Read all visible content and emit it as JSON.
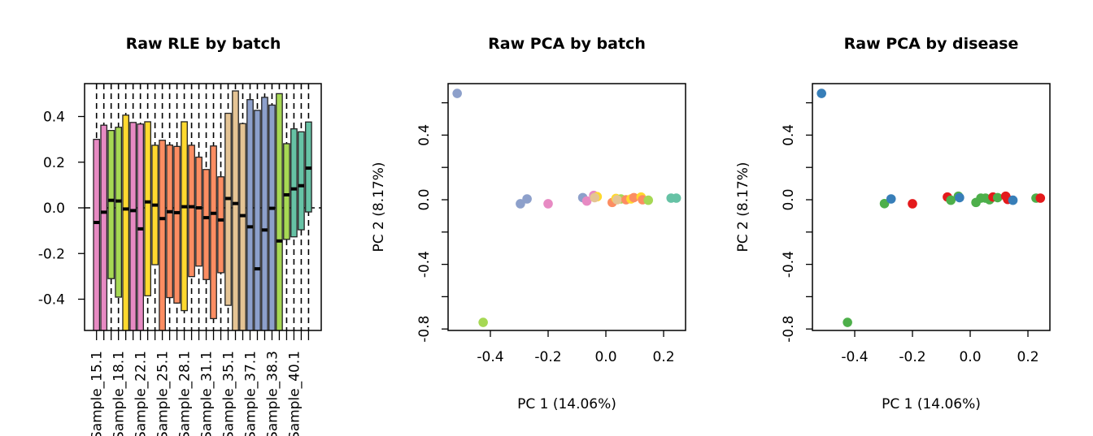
{
  "chart_data": [
    {
      "type": "box",
      "title": "Raw RLE by batch",
      "ylim": [
        -0.54,
        0.54
      ],
      "yticks": [
        "-0.4",
        "-0.2",
        "0.0",
        "0.2",
        "0.4"
      ],
      "ytick_values": [
        -0.4,
        -0.2,
        0.0,
        0.2,
        0.4
      ],
      "reference_line": 0,
      "xtick_labels": [
        {
          "box": 1,
          "label": "Sample_15.1"
        },
        {
          "box": 4,
          "label": "Sample_18.1"
        },
        {
          "box": 7,
          "label": "Sample_22.1"
        },
        {
          "box": 10,
          "label": "Sample_25.1"
        },
        {
          "box": 13,
          "label": "Sample_28.1"
        },
        {
          "box": 16,
          "label": "Sample_31.1"
        },
        {
          "box": 19,
          "label": "Sample_35.1"
        },
        {
          "box": 22,
          "label": "Sample_37.1"
        },
        {
          "box": 25,
          "label": "Sample_38.3"
        },
        {
          "box": 28,
          "label": "Sample_40.1"
        }
      ],
      "boxes": [
        {
          "q3": 0.3,
          "median": -0.064,
          "q1": -0.6,
          "color": "#E78AC3"
        },
        {
          "q3": 0.362,
          "median": -0.019,
          "q1": -0.6,
          "color": "#E78AC3"
        },
        {
          "q3": 0.339,
          "median": 0.033,
          "q1": -0.31,
          "color": "#A6D854"
        },
        {
          "q3": 0.353,
          "median": 0.03,
          "q1": -0.391,
          "color": "#A6D854"
        },
        {
          "q3": 0.406,
          "median": -0.005,
          "q1": -0.6,
          "color": "#FFD92F"
        },
        {
          "q3": 0.374,
          "median": -0.012,
          "q1": -0.6,
          "color": "#E78AC3"
        },
        {
          "q3": 0.367,
          "median": -0.092,
          "q1": -0.6,
          "color": "#E78AC3"
        },
        {
          "q3": 0.377,
          "median": 0.026,
          "q1": -0.385,
          "color": "#FFD92F"
        },
        {
          "q3": 0.274,
          "median": 0.012,
          "q1": -0.249,
          "color": "#FFD92F"
        },
        {
          "q3": 0.296,
          "median": -0.047,
          "q1": -0.6,
          "color": "#FC8D62"
        },
        {
          "q3": 0.275,
          "median": -0.017,
          "q1": -0.393,
          "color": "#FC8D62"
        },
        {
          "q3": 0.269,
          "median": -0.021,
          "q1": -0.417,
          "color": "#FC8D62"
        },
        {
          "q3": 0.377,
          "median": 0.005,
          "q1": -0.45,
          "color": "#FFD92F"
        },
        {
          "q3": 0.274,
          "median": 0.005,
          "q1": -0.301,
          "color": "#FC8D62"
        },
        {
          "q3": 0.222,
          "median": 0.0,
          "q1": -0.255,
          "color": "#FC8D62"
        },
        {
          "q3": 0.168,
          "median": -0.043,
          "q1": -0.314,
          "color": "#FC8D62"
        },
        {
          "q3": 0.271,
          "median": -0.024,
          "q1": -0.485,
          "color": "#FC8D62"
        },
        {
          "q3": 0.136,
          "median": -0.053,
          "q1": -0.284,
          "color": "#FC8D62"
        },
        {
          "q3": 0.414,
          "median": 0.041,
          "q1": -0.427,
          "color": "#E5C494"
        },
        {
          "q3": 0.512,
          "median": 0.019,
          "q1": -0.6,
          "color": "#E5C494"
        },
        {
          "q3": 0.369,
          "median": -0.034,
          "q1": -0.6,
          "color": "#E5C494"
        },
        {
          "q3": 0.474,
          "median": -0.083,
          "q1": -0.6,
          "color": "#8DA0CB"
        },
        {
          "q3": 0.427,
          "median": -0.267,
          "q1": -0.6,
          "color": "#8DA0CB"
        },
        {
          "q3": 0.484,
          "median": -0.097,
          "q1": -0.6,
          "color": "#8DA0CB"
        },
        {
          "q3": 0.45,
          "median": -0.002,
          "q1": -0.6,
          "color": "#8DA0CB"
        },
        {
          "q3": 0.5,
          "median": -0.145,
          "q1": -0.6,
          "color": "#A6D854"
        },
        {
          "q3": 0.281,
          "median": 0.057,
          "q1": -0.138,
          "color": "#A6D854"
        },
        {
          "q3": 0.346,
          "median": 0.083,
          "q1": -0.127,
          "color": "#66C2A5"
        },
        {
          "q3": 0.333,
          "median": 0.097,
          "q1": -0.096,
          "color": "#66C2A5"
        },
        {
          "q3": 0.376,
          "median": 0.174,
          "q1": -0.018,
          "color": "#66C2A5"
        }
      ]
    },
    {
      "type": "scatter",
      "title": "Raw PCA by batch",
      "xlabel": "PC 1 (14.06%)",
      "ylabel": "PC 2 (8.17%)",
      "xlim": [
        -0.549,
        0.276
      ],
      "ylim": [
        -0.8,
        0.72
      ],
      "xticks": [
        "-0.4",
        "-0.2",
        "0.0",
        "0.2"
      ],
      "xtick_values": [
        -0.4,
        -0.2,
        0.0,
        0.2
      ],
      "yticks": [
        "-0.8",
        "-0.4",
        "0.0",
        "0.4"
      ],
      "ytick_values": [
        -0.8,
        -0.4,
        0.0,
        0.4
      ],
      "yminor_values": [
        -0.6,
        -0.2,
        0.2,
        0.6
      ],
      "points": [
        {
          "x": -0.515,
          "y": 0.658,
          "color": "#8DA0CB"
        },
        {
          "x": -0.425,
          "y": -0.759,
          "color": "#A6D854"
        },
        {
          "x": -0.296,
          "y": -0.025,
          "color": "#8DA0CB"
        },
        {
          "x": -0.273,
          "y": 0.005,
          "color": "#8DA0CB"
        },
        {
          "x": -0.2,
          "y": -0.025,
          "color": "#E78AC3"
        },
        {
          "x": -0.08,
          "y": 0.013,
          "color": "#8DA0CB"
        },
        {
          "x": -0.066,
          "y": -0.008,
          "color": "#E78AC3"
        },
        {
          "x": -0.042,
          "y": 0.027,
          "color": "#E78AC3"
        },
        {
          "x": -0.03,
          "y": 0.019,
          "color": "#FFD92F"
        },
        {
          "x": -0.039,
          "y": 0.013,
          "color": "#E5C494"
        },
        {
          "x": 0.022,
          "y": -0.017,
          "color": "#FC8D62"
        },
        {
          "x": 0.035,
          "y": 0.008,
          "color": "#FFD92F"
        },
        {
          "x": 0.052,
          "y": 0.005,
          "color": "#A6D854"
        },
        {
          "x": 0.039,
          "y": 0.0,
          "color": "#E5C494"
        },
        {
          "x": 0.07,
          "y": 0.0,
          "color": "#FC8D62"
        },
        {
          "x": 0.087,
          "y": 0.005,
          "color": "#FFD92F"
        },
        {
          "x": 0.097,
          "y": 0.013,
          "color": "#FC8D62"
        },
        {
          "x": 0.122,
          "y": 0.017,
          "color": "#FFD92F"
        },
        {
          "x": 0.127,
          "y": 0.0,
          "color": "#FC8D62"
        },
        {
          "x": 0.147,
          "y": -0.003,
          "color": "#A6D854"
        },
        {
          "x": 0.226,
          "y": 0.01,
          "color": "#66C2A5"
        },
        {
          "x": 0.244,
          "y": 0.01,
          "color": "#66C2A5"
        }
      ]
    },
    {
      "type": "scatter",
      "title": "Raw PCA by disease",
      "xlabel": "PC 1 (14.06%)",
      "ylabel": "PC 2 (8.17%)",
      "xlim": [
        -0.549,
        0.276
      ],
      "ylim": [
        -0.8,
        0.72
      ],
      "xticks": [
        "-0.4",
        "-0.2",
        "0.0",
        "0.2"
      ],
      "xtick_values": [
        -0.4,
        -0.2,
        0.0,
        0.2
      ],
      "yticks": [
        "-0.8",
        "-0.4",
        "0.0",
        "0.4"
      ],
      "ytick_values": [
        -0.8,
        -0.4,
        0.0,
        0.4
      ],
      "yminor_values": [
        -0.6,
        -0.2,
        0.2,
        0.6
      ],
      "points": [
        {
          "x": -0.515,
          "y": 0.658,
          "color": "#377EB8"
        },
        {
          "x": -0.425,
          "y": -0.759,
          "color": "#4DAF4A"
        },
        {
          "x": -0.297,
          "y": -0.024,
          "color": "#4DAF4A"
        },
        {
          "x": -0.274,
          "y": 0.005,
          "color": "#377EB8"
        },
        {
          "x": -0.2,
          "y": -0.025,
          "color": "#E41A1C"
        },
        {
          "x": -0.079,
          "y": 0.017,
          "color": "#E41A1C"
        },
        {
          "x": -0.067,
          "y": -0.003,
          "color": "#4DAF4A"
        },
        {
          "x": -0.041,
          "y": 0.022,
          "color": "#4DAF4A"
        },
        {
          "x": -0.037,
          "y": 0.013,
          "color": "#377EB8"
        },
        {
          "x": 0.02,
          "y": -0.017,
          "color": "#4DAF4A"
        },
        {
          "x": 0.037,
          "y": 0.01,
          "color": "#4DAF4A"
        },
        {
          "x": 0.053,
          "y": 0.01,
          "color": "#4DAF4A"
        },
        {
          "x": 0.067,
          "y": 0.0,
          "color": "#4DAF4A"
        },
        {
          "x": 0.079,
          "y": 0.017,
          "color": "#E41A1C"
        },
        {
          "x": 0.095,
          "y": 0.013,
          "color": "#4DAF4A"
        },
        {
          "x": 0.123,
          "y": 0.022,
          "color": "#E41A1C"
        },
        {
          "x": 0.13,
          "y": 0.002,
          "color": "#E41A1C"
        },
        {
          "x": 0.148,
          "y": -0.003,
          "color": "#377EB8"
        },
        {
          "x": 0.228,
          "y": 0.01,
          "color": "#4DAF4A"
        },
        {
          "x": 0.243,
          "y": 0.01,
          "color": "#E41A1C"
        }
      ]
    }
  ]
}
